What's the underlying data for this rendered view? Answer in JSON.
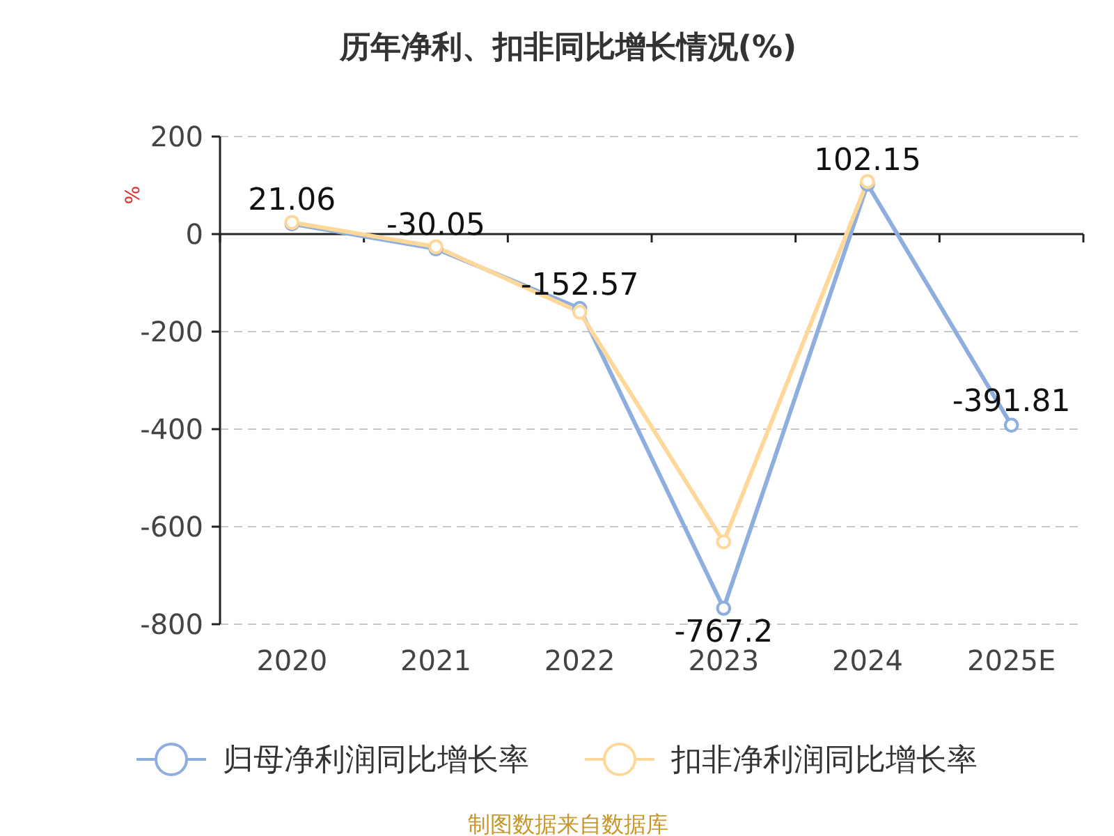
{
  "chart_data": {
    "type": "line",
    "title": "历年净利、扣非同比增长情况(%)",
    "ylabel": "%",
    "categories": [
      "2020",
      "2021",
      "2022",
      "2023",
      "2024",
      "2025E"
    ],
    "series": [
      {
        "name": "归母净利润同比增长率",
        "color": "#8eaede",
        "values": [
          21.06,
          -30.05,
          -152.57,
          -767.2,
          102.15,
          -391.81
        ],
        "value_labels": [
          "21.06",
          "-30.05",
          "-152.57",
          "-767.2",
          "102.15",
          "-391.81"
        ]
      },
      {
        "name": "扣非净利润同比增长率",
        "color": "#fdd89a",
        "values": [
          24,
          -26,
          -160,
          -631,
          108,
          null
        ]
      }
    ],
    "ylim": [
      -800,
      200
    ],
    "yticks": [
      -800,
      -600,
      -400,
      -200,
      0,
      200
    ],
    "grid": "y",
    "legend": "bottom",
    "marker": "circle",
    "annotations": [
      "制图数据来自数据库"
    ]
  }
}
